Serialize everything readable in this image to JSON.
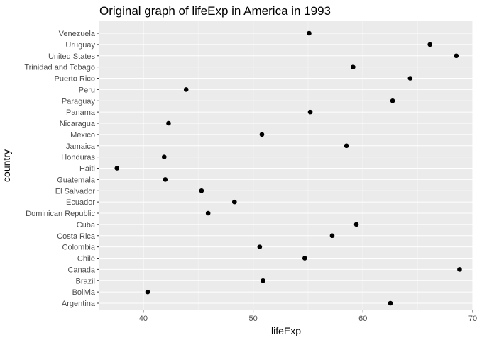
{
  "chart_data": {
    "type": "scatter",
    "title": "Original graph of lifeExp in America in 1993",
    "xlabel": "lifeExp",
    "ylabel": "country",
    "xlim": [
      36.0,
      70.0
    ],
    "x_ticks": [
      40,
      50,
      60,
      70
    ],
    "grid": true,
    "legend": "none",
    "categories": [
      "Argentina",
      "Bolivia",
      "Brazil",
      "Canada",
      "Chile",
      "Colombia",
      "Costa Rica",
      "Cuba",
      "Dominican Republic",
      "Ecuador",
      "El Salvador",
      "Guatemala",
      "Haiti",
      "Honduras",
      "Jamaica",
      "Mexico",
      "Nicaragua",
      "Panama",
      "Paraguay",
      "Peru",
      "Puerto Rico",
      "Trinidad and Tobago",
      "United States",
      "Uruguay",
      "Venezuela"
    ],
    "values": [
      62.5,
      40.4,
      50.9,
      68.8,
      54.7,
      50.6,
      57.2,
      59.4,
      45.9,
      48.3,
      45.3,
      42.0,
      37.6,
      41.9,
      58.5,
      50.8,
      42.3,
      55.2,
      62.7,
      43.9,
      64.3,
      59.1,
      68.5,
      66.1,
      55.1
    ],
    "colors": {
      "panel": "#ebebeb",
      "grid_major": "#ffffff",
      "grid_minor": "#f5f5f5",
      "point": "#000000",
      "tick": "#333333",
      "tick_label": "#4d4d4d"
    }
  }
}
